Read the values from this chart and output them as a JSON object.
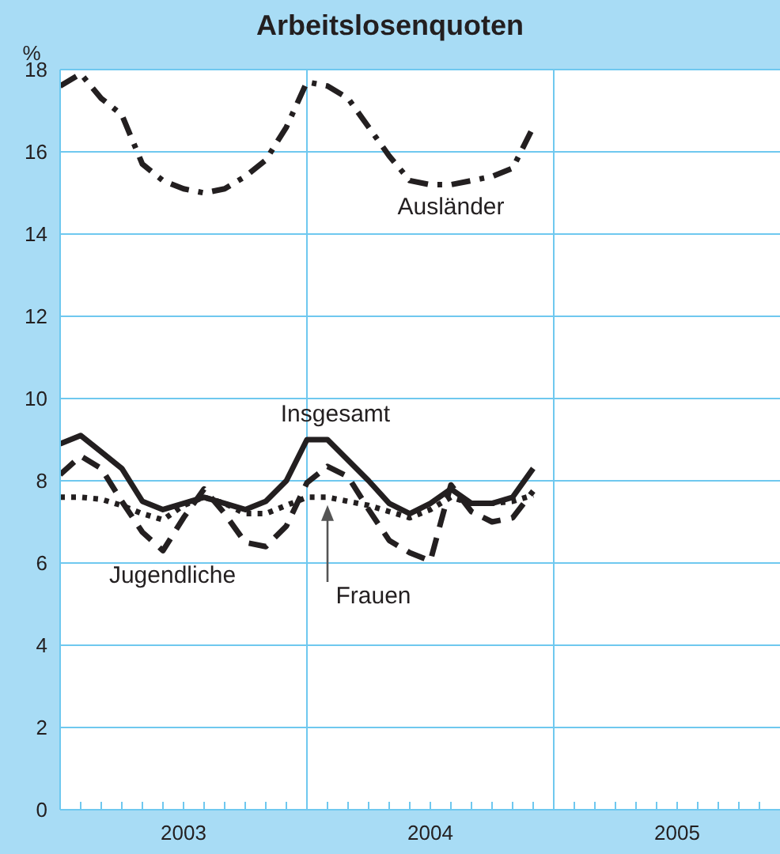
{
  "chart_data": {
    "type": "line",
    "title": "Arbeitslosenquoten",
    "ylabel": "%",
    "x": [
      "2003-01",
      "2003-02",
      "2003-03",
      "2003-04",
      "2003-05",
      "2003-06",
      "2003-07",
      "2003-08",
      "2003-09",
      "2003-10",
      "2003-11",
      "2003-12",
      "2004-01",
      "2004-02",
      "2004-03",
      "2004-04",
      "2004-05",
      "2004-06",
      "2004-07",
      "2004-08",
      "2004-09",
      "2004-10",
      "2004-11",
      "2004-12"
    ],
    "series": [
      {
        "color": "#231f20",
        "line_style": "dashdot",
        "values": [
          17.6,
          17.9,
          17.3,
          16.9,
          15.7,
          15.3,
          15.1,
          15.0,
          15.1,
          15.4,
          15.8,
          16.6,
          17.7,
          17.6,
          17.3,
          16.6,
          15.9,
          15.3,
          15.2,
          15.2,
          15.3,
          15.4,
          15.6,
          16.6
        ]
      },
      {
        "color": "#231f20",
        "line_style": "solid",
        "values": [
          8.9,
          9.1,
          8.7,
          8.3,
          7.5,
          7.3,
          7.45,
          7.6,
          7.45,
          7.3,
          7.5,
          8.0,
          9.0,
          9.0,
          8.5,
          8.0,
          7.45,
          7.2,
          7.45,
          7.8,
          7.45,
          7.45,
          7.6,
          8.3
        ]
      },
      {
        "color": "#231f20",
        "line_style": "dashed",
        "values": [
          8.15,
          8.6,
          8.3,
          7.5,
          6.75,
          6.3,
          7.1,
          7.8,
          7.2,
          6.5,
          6.4,
          6.9,
          7.95,
          8.35,
          8.1,
          7.3,
          6.55,
          6.25,
          6.05,
          7.9,
          7.25,
          7.0,
          7.1,
          7.75
        ]
      },
      {
        "color": "#231f20",
        "line_style": "dotted",
        "values": [
          7.6,
          7.6,
          7.55,
          7.4,
          7.2,
          7.05,
          7.4,
          7.6,
          7.45,
          7.2,
          7.2,
          7.4,
          7.6,
          7.6,
          7.5,
          7.4,
          7.25,
          7.1,
          7.3,
          7.6,
          7.45,
          7.45,
          7.5,
          7.65
        ]
      }
    ],
    "xlim": [
      "2003-01",
      "2005-12"
    ],
    "xticks": [
      {
        "value": "2003-01",
        "label": null
      },
      {
        "value": "2003-02",
        "label": null
      },
      {
        "value": "2003-03",
        "label": null
      },
      {
        "value": "2003-04",
        "label": null
      },
      {
        "value": "2003-05",
        "label": null
      },
      {
        "value": "2003-06",
        "label": null
      },
      {
        "value": "2003-07",
        "label": "2003"
      },
      {
        "value": "2003-08",
        "label": null
      },
      {
        "value": "2003-09",
        "label": null
      },
      {
        "value": "2003-10",
        "label": null
      },
      {
        "value": "2003-11",
        "label": null
      },
      {
        "value": "2003-12",
        "label": null
      },
      {
        "value": "2004-01",
        "label": null
      },
      {
        "value": "2004-02",
        "label": null
      },
      {
        "value": "2004-03",
        "label": null
      },
      {
        "value": "2004-04",
        "label": null
      },
      {
        "value": "2004-05",
        "label": null
      },
      {
        "value": "2004-06",
        "label": null
      },
      {
        "value": "2004-07",
        "label": "2004"
      },
      {
        "value": "2004-08",
        "label": null
      },
      {
        "value": "2004-09",
        "label": null
      },
      {
        "value": "2004-10",
        "label": null
      },
      {
        "value": "2004-11",
        "label": null
      },
      {
        "value": "2004-12",
        "label": null
      },
      {
        "value": "2005-01",
        "label": null
      },
      {
        "value": "2005-02",
        "label": null
      },
      {
        "value": "2005-03",
        "label": null
      },
      {
        "value": "2005-04",
        "label": null
      },
      {
        "value": "2005-05",
        "label": null
      },
      {
        "value": "2005-06",
        "label": null
      },
      {
        "value": "2005-07",
        "label": "2005"
      },
      {
        "value": "2005-08",
        "label": null
      },
      {
        "value": "2005-09",
        "label": null
      },
      {
        "value": "2005-10",
        "label": null
      },
      {
        "value": "2005-11",
        "label": null
      }
    ],
    "ylim": [
      0,
      18
    ],
    "yticks": [
      0,
      2,
      4,
      6,
      8,
      10,
      12,
      14,
      16,
      18
    ],
    "grid": "y",
    "legend": false,
    "ref_lines": [
      {
        "axis": "x",
        "value": "2004-01",
        "color": "#6fc8ef"
      },
      {
        "axis": "x",
        "value": "2005-01",
        "color": "#6fc8ef"
      }
    ],
    "annotations": [
      "Ausländer",
      "Insgesamt",
      "Jugendliche",
      "Frauen"
    ]
  }
}
